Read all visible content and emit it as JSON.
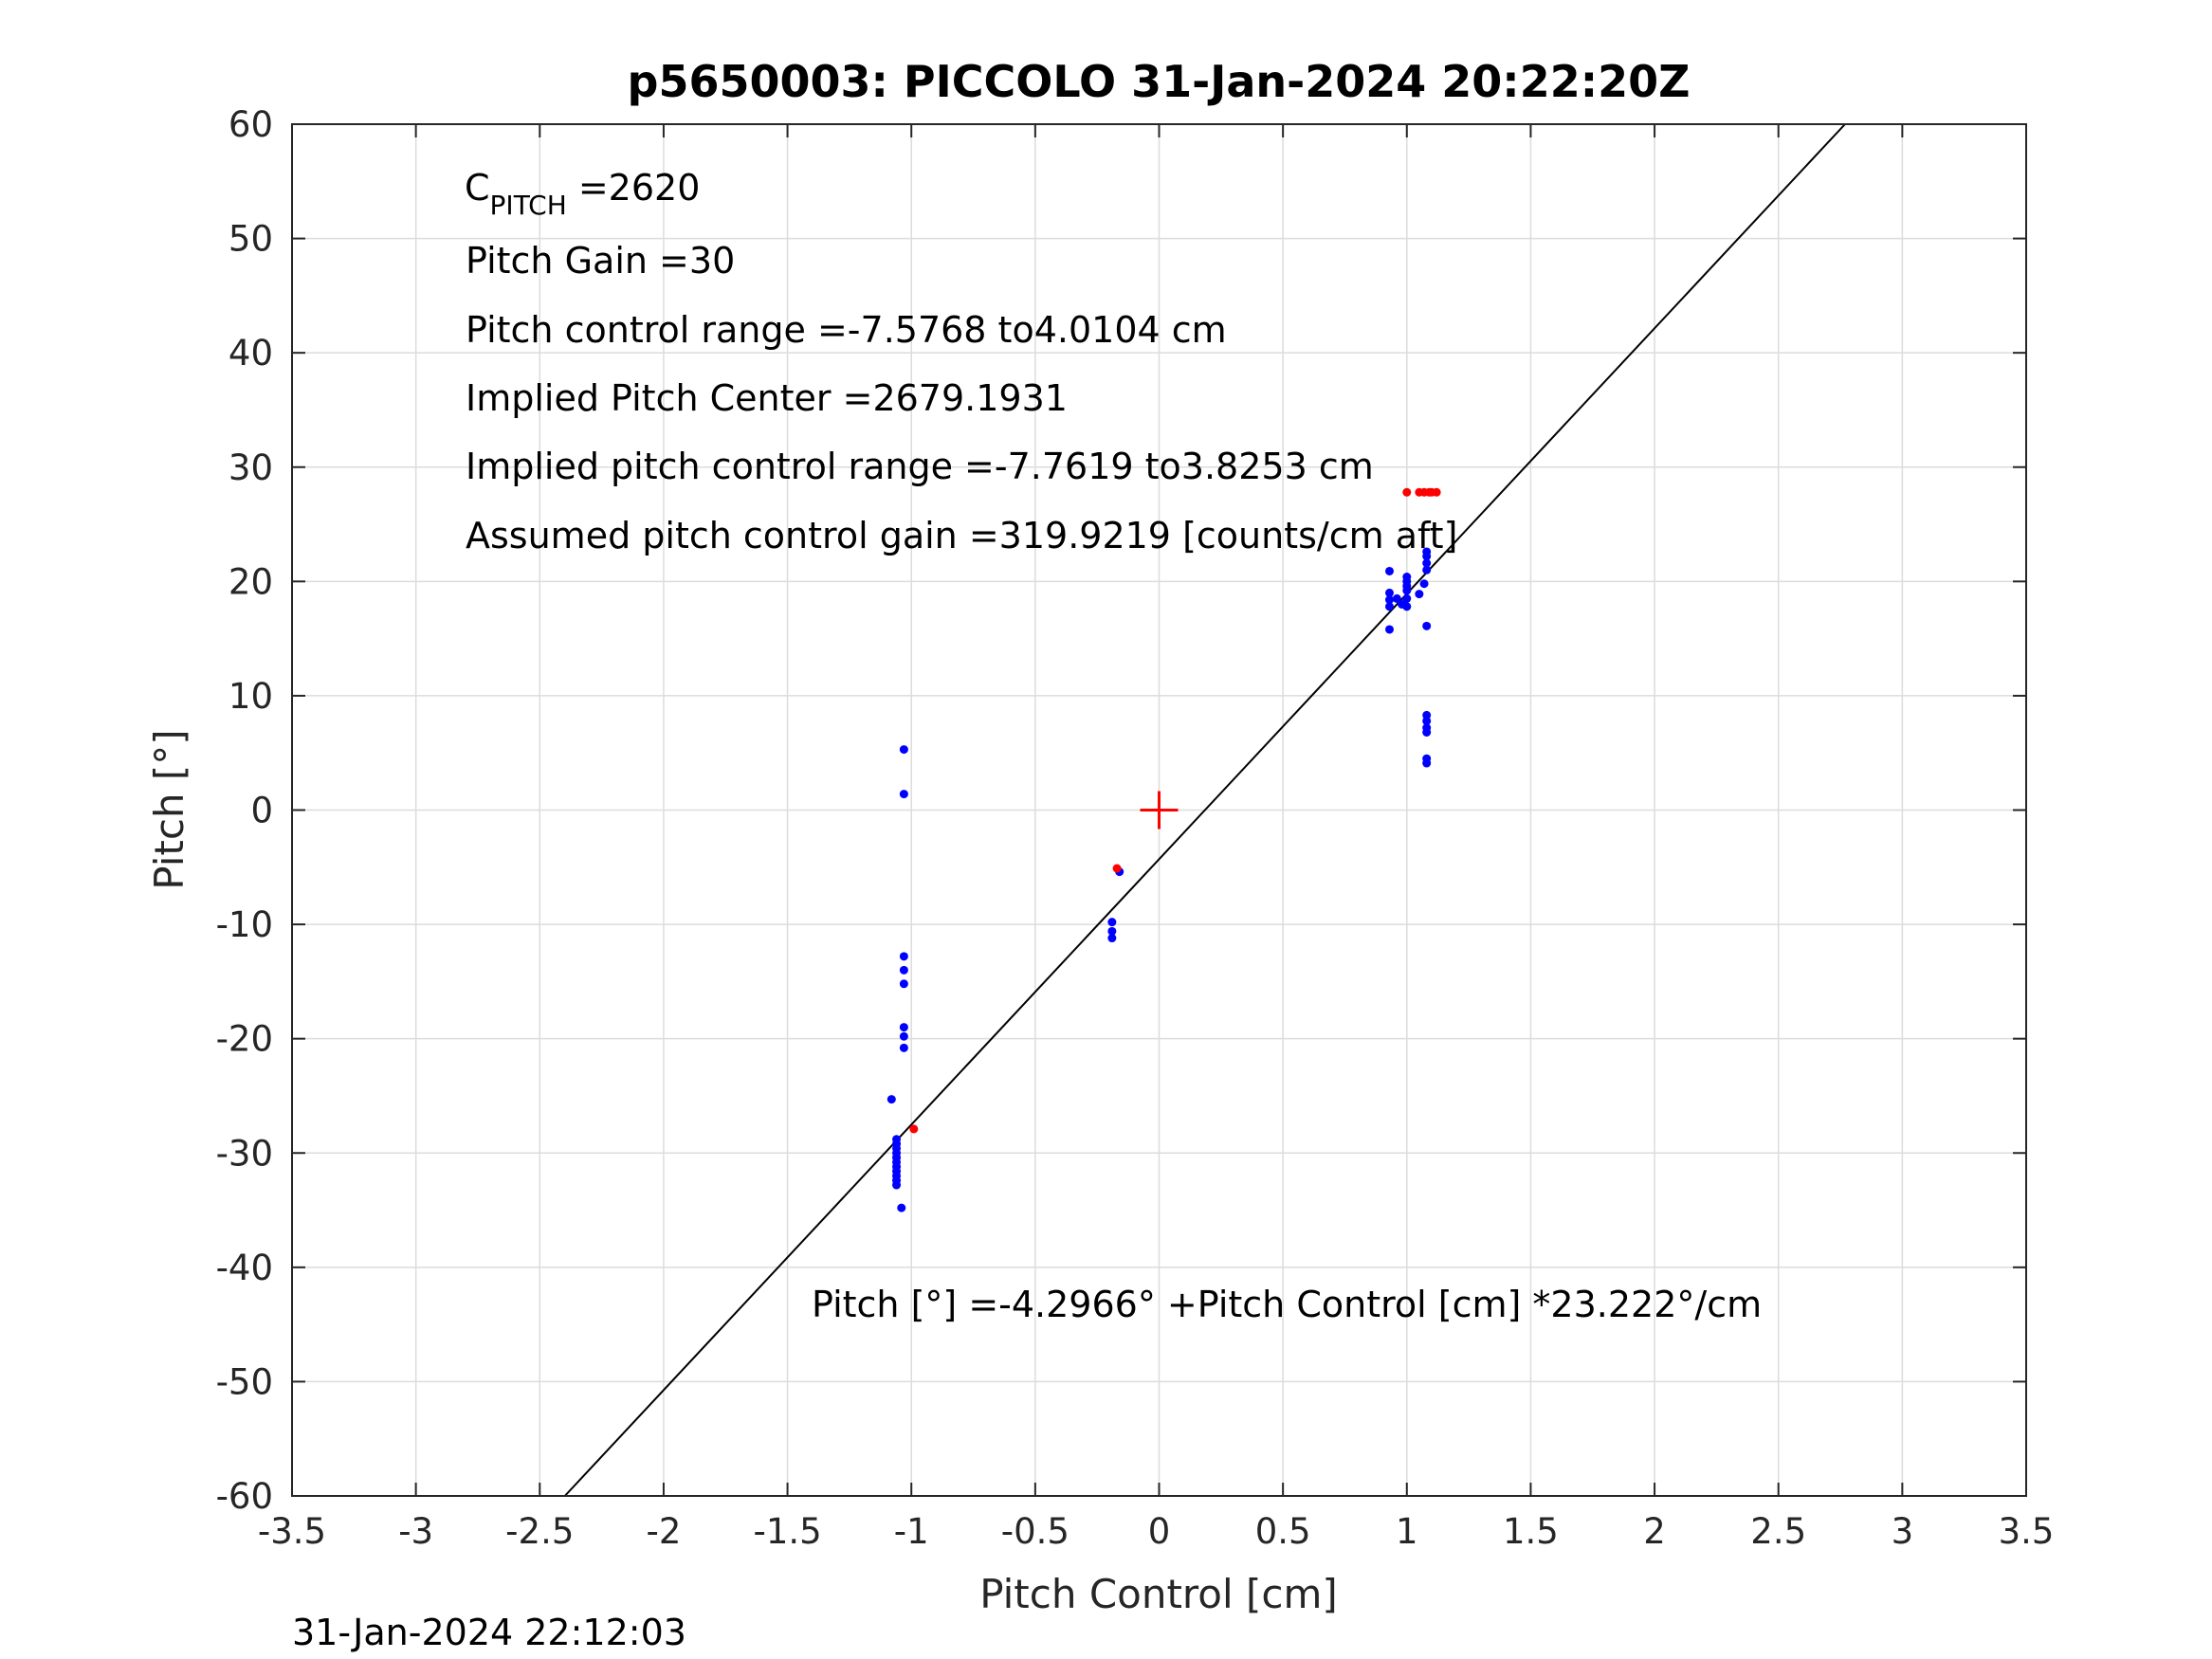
{
  "chart_data": {
    "type": "scatter",
    "title": "p5650003: PICCOLO 31-Jan-2024 20:22:20Z",
    "xlabel": "Pitch Control [cm]",
    "ylabel": "Pitch [°]",
    "xlim": [
      -3.5,
      3.5
    ],
    "ylim": [
      -60,
      60
    ],
    "xticks": [
      -3.5,
      -3,
      -2.5,
      -2,
      -1.5,
      -1,
      -0.5,
      0,
      0.5,
      1,
      1.5,
      2,
      2.5,
      3,
      3.5
    ],
    "yticks": [
      -60,
      -50,
      -40,
      -30,
      -20,
      -10,
      0,
      10,
      20,
      30,
      40,
      50,
      60
    ],
    "xtick_labels": [
      "-3.5",
      "-3",
      "-2.5",
      "-2",
      "-1.5",
      "-1",
      "-0.5",
      "0",
      "0.5",
      "1",
      "1.5",
      "2",
      "2.5",
      "3",
      "3.5"
    ],
    "ytick_labels": [
      "-60",
      "-50",
      "-40",
      "-30",
      "-20",
      "-10",
      "0",
      "10",
      "20",
      "30",
      "40",
      "50",
      "60"
    ],
    "grid": true,
    "colors": {
      "fit": "#000000",
      "series_blue": "#0000ff",
      "series_red": "#ff0000",
      "center_marker": "#ff0000",
      "grid": "#dcdcdc",
      "axes": "#262626"
    },
    "fit_line": {
      "intercept": -4.2966,
      "slope": 23.222
    },
    "center_marker": {
      "x": 0,
      "y": 0,
      "marker": "plus"
    },
    "series": [
      {
        "color": "#0000ff",
        "points": [
          [
            -1.03,
            5.3
          ],
          [
            -1.03,
            1.4
          ],
          [
            -1.03,
            -12.8
          ],
          [
            -1.03,
            -14.0
          ],
          [
            -1.03,
            -15.2
          ],
          [
            -1.03,
            -19.0
          ],
          [
            -1.03,
            -19.8
          ],
          [
            -1.03,
            -20.8
          ],
          [
            -1.08,
            -25.3
          ],
          [
            -1.06,
            -28.8
          ],
          [
            -1.06,
            -29.2
          ],
          [
            -1.06,
            -29.6
          ],
          [
            -1.06,
            -30.0
          ],
          [
            -1.06,
            -30.4
          ],
          [
            -1.06,
            -30.8
          ],
          [
            -1.06,
            -31.2
          ],
          [
            -1.06,
            -31.6
          ],
          [
            -1.06,
            -32.0
          ],
          [
            -1.06,
            -32.4
          ],
          [
            -1.06,
            -32.8
          ],
          [
            -1.04,
            -34.8
          ],
          [
            -0.16,
            -5.4
          ],
          [
            -0.19,
            -9.8
          ],
          [
            -0.19,
            -10.6
          ],
          [
            -0.19,
            -11.2
          ],
          [
            0.93,
            20.9
          ],
          [
            0.93,
            19.0
          ],
          [
            0.93,
            18.4
          ],
          [
            0.93,
            17.8
          ],
          [
            0.93,
            15.8
          ],
          [
            0.96,
            18.5
          ],
          [
            0.98,
            18.0
          ],
          [
            1.0,
            17.8
          ],
          [
            1.0,
            18.5
          ],
          [
            1.0,
            19.2
          ],
          [
            1.0,
            19.6
          ],
          [
            1.0,
            20.0
          ],
          [
            1.0,
            20.4
          ],
          [
            1.05,
            18.9
          ],
          [
            1.07,
            19.8
          ],
          [
            1.08,
            21.0
          ],
          [
            1.08,
            21.6
          ],
          [
            1.08,
            22.2
          ],
          [
            1.08,
            22.6
          ],
          [
            1.08,
            16.1
          ],
          [
            1.08,
            8.3
          ],
          [
            1.08,
            7.8
          ],
          [
            1.08,
            7.2
          ],
          [
            1.08,
            6.8
          ],
          [
            1.08,
            4.5
          ],
          [
            1.08,
            4.1
          ]
        ]
      },
      {
        "color": "#ff0000",
        "points": [
          [
            -0.99,
            -27.9
          ],
          [
            -0.17,
            -5.1
          ],
          [
            1.0,
            27.8
          ],
          [
            1.05,
            27.8
          ],
          [
            1.07,
            27.8
          ],
          [
            1.09,
            27.8
          ],
          [
            1.1,
            27.8
          ],
          [
            1.12,
            27.8
          ]
        ]
      }
    ],
    "annotations": {
      "c_pitch_main": "C",
      "c_pitch_sub": "PITCH",
      "c_pitch_value": " =2620",
      "pitch_gain": "Pitch Gain =30",
      "control_range": "Pitch control range =-7.5768 to4.0104 cm",
      "implied_center": "Implied Pitch Center =2679.1931",
      "implied_range": "Implied pitch control range =-7.7619 to3.8253 cm",
      "assumed_gain": "Assumed pitch control gain =319.9219 [counts/cm aft]",
      "fit_equation": "Pitch [°] =-4.2966° +Pitch Control [cm] *23.222°/cm"
    }
  },
  "footer": {
    "timestamp": "31-Jan-2024 22:12:03"
  }
}
